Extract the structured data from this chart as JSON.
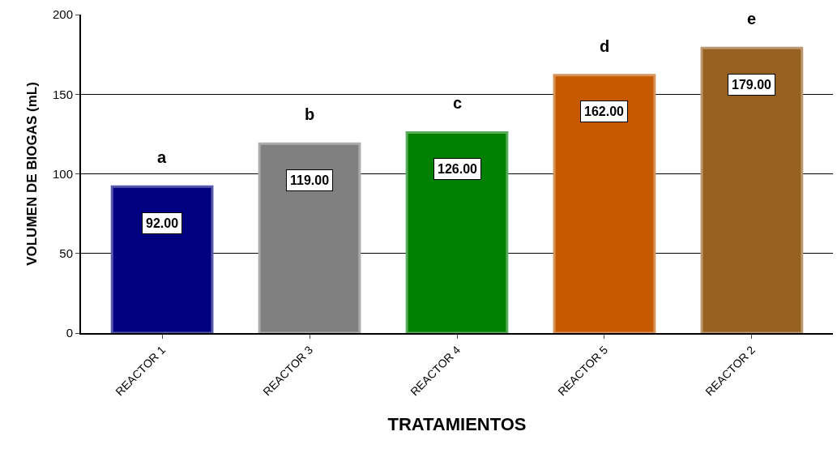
{
  "chart_data": {
    "type": "bar",
    "xlabel": "TRATAMIENTOS",
    "ylabel": "VOLUMEN DE BIOGAS (mL)",
    "categories": [
      "REACTOR 1",
      "REACTOR 3",
      "REACTOR 4",
      "REACTOR 5",
      "REACTOR 2"
    ],
    "values": [
      92,
      119,
      126,
      162,
      179
    ],
    "colors": [
      "#000080",
      "#808080",
      "#008000",
      "#c55a00",
      "#956020"
    ],
    "value_labels": [
      "92.00",
      "119.00",
      "126.00",
      "162.00",
      "179.00"
    ],
    "ylim": [
      0,
      200
    ],
    "yticks": [
      0,
      50,
      100,
      150,
      200
    ],
    "grid": "y",
    "legend": false,
    "annotations": [
      "a",
      "b",
      "c",
      "d",
      "e"
    ]
  }
}
